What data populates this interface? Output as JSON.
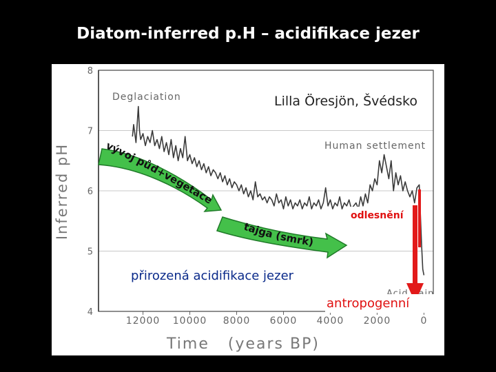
{
  "slide": {
    "title": "Diatom-inferred p.H – acidifikace jezer"
  },
  "colors": {
    "background": "#000000",
    "figure_bg": "#ffffff",
    "series": "#3a3a3a",
    "arrow_fill": "#44c04a",
    "arrow_stroke": "#1f7a28",
    "red_line": "#e21a1a",
    "red_text": "#e01010",
    "blue_text": "#0a2a8a"
  },
  "chart_data": {
    "type": "line",
    "title": "Lilla Öresjön, Švédsko",
    "xlabel": "Time   (years BP)",
    "ylabel": "Inferred pH",
    "xlim": [
      13900,
      -400
    ],
    "ylim": [
      4,
      8
    ],
    "x_ticks": [
      12000,
      10000,
      8000,
      6000,
      4000,
      2000,
      0
    ],
    "y_ticks": [
      4,
      5,
      6,
      7,
      8
    ],
    "grid": true,
    "series": [
      {
        "x": [
          12450,
          12400,
          12300,
          12200,
          12150,
          12100,
          12000,
          11900,
          11800,
          11700,
          11600,
          11500,
          11400,
          11300,
          11200,
          11100,
          11000,
          10900,
          10800,
          10700,
          10600,
          10500,
          10400,
          10300,
          10200,
          10100,
          10000,
          9900,
          9800,
          9700,
          9600,
          9500,
          9400,
          9300,
          9200,
          9100,
          9000,
          8900,
          8800,
          8700,
          8600,
          8500,
          8400,
          8300,
          8200,
          8100,
          8000,
          7900,
          7800,
          7700,
          7600,
          7500,
          7400,
          7300,
          7200,
          7100,
          7000,
          6900,
          6800,
          6700,
          6600,
          6500,
          6400,
          6300,
          6200,
          6100,
          6000,
          5900,
          5800,
          5700,
          5600,
          5500,
          5400,
          5300,
          5200,
          5100,
          5000,
          4900,
          4800,
          4700,
          4600,
          4500,
          4400,
          4300,
          4200,
          4100,
          4000,
          3900,
          3800,
          3700,
          3600,
          3500,
          3400,
          3300,
          3200,
          3100,
          3000,
          2900,
          2800,
          2700,
          2600,
          2500,
          2400,
          2300,
          2200,
          2100,
          2000,
          1900,
          1800,
          1700,
          1600,
          1500,
          1400,
          1300,
          1200,
          1100,
          1000,
          900,
          800,
          700,
          600,
          500,
          400,
          300,
          200,
          150,
          100,
          50,
          0
        ],
        "values": [
          6.9,
          7.1,
          6.8,
          7.4,
          7.0,
          6.85,
          6.95,
          6.75,
          6.9,
          6.8,
          7.0,
          6.75,
          6.85,
          6.7,
          6.9,
          6.65,
          6.8,
          6.6,
          6.85,
          6.55,
          6.75,
          6.5,
          6.7,
          6.55,
          6.9,
          6.5,
          6.6,
          6.45,
          6.55,
          6.4,
          6.5,
          6.35,
          6.45,
          6.3,
          6.4,
          6.25,
          6.35,
          6.3,
          6.2,
          6.3,
          6.15,
          6.25,
          6.1,
          6.2,
          6.05,
          6.15,
          6.1,
          6.0,
          6.1,
          5.95,
          6.05,
          5.9,
          6.0,
          5.85,
          6.15,
          5.9,
          5.95,
          5.85,
          5.9,
          5.8,
          5.9,
          5.85,
          5.75,
          5.95,
          5.8,
          5.85,
          5.7,
          5.9,
          5.75,
          5.85,
          5.7,
          5.8,
          5.75,
          5.85,
          5.7,
          5.8,
          5.75,
          5.9,
          5.7,
          5.8,
          5.75,
          5.85,
          5.7,
          5.8,
          6.05,
          5.75,
          5.85,
          5.7,
          5.8,
          5.75,
          5.9,
          5.7,
          5.8,
          5.75,
          5.85,
          5.7,
          5.75,
          5.8,
          5.7,
          5.9,
          5.75,
          5.95,
          5.8,
          6.1,
          6.0,
          6.2,
          6.1,
          6.5,
          6.3,
          6.6,
          6.4,
          6.2,
          6.5,
          6.0,
          6.3,
          6.1,
          6.25,
          6.0,
          6.15,
          6.0,
          5.9,
          6.0,
          5.8,
          6.05,
          6.1,
          5.6,
          5.1,
          4.7,
          4.6
        ]
      }
    ],
    "annotations": {
      "deglaciation": "Deglaciation",
      "human_settlement": "Human settlement",
      "acid_rain": "Acid Rain"
    }
  },
  "overlays": {
    "arrow1_label": "vývoj půd+vegetace",
    "arrow2_label": "tajga (smrk)",
    "odlesneni": "odlesnění",
    "prirozena": "přirozená acidifikace jezer",
    "antropogenni": "antropogenní"
  }
}
